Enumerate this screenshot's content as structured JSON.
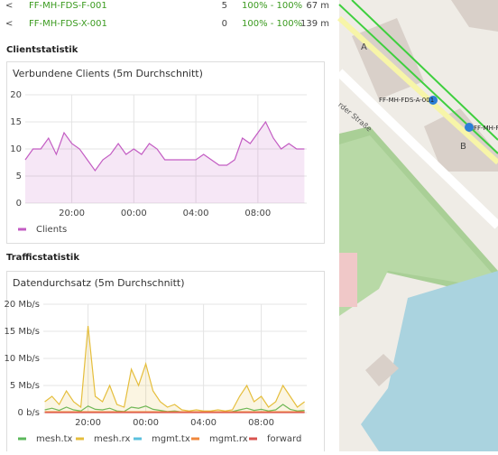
{
  "neighbors": [
    {
      "name": "FF-MH-FDS-F-001",
      "clients": "5",
      "quality": "100% - 100%",
      "distance": "67 m"
    },
    {
      "name": "FF-MH-FDS-X-001",
      "clients": "0",
      "quality": "100% - 100%",
      "distance": "139 m"
    }
  ],
  "headings": {
    "clients": "Clientstatistik",
    "traffic": "Trafficstatistik"
  },
  "chart_data": [
    {
      "type": "line",
      "title": "Verbundene Clients (5m Durchschnitt)",
      "x": [
        17,
        17.5,
        18,
        18.5,
        19,
        19.5,
        20,
        20.5,
        21,
        21.5,
        22,
        22.5,
        23,
        23.5,
        24,
        24.5,
        25,
        25.5,
        26,
        26.5,
        27,
        27.5,
        28,
        28.5,
        29,
        29.5,
        30,
        30.5,
        31,
        31.5,
        32,
        32.5,
        33,
        33.5,
        34,
        34.5,
        35
      ],
      "series": [
        {
          "name": "Clients",
          "color": "#c35cc3",
          "area": true,
          "values": [
            8,
            10,
            10,
            12,
            9,
            13,
            11,
            10,
            8,
            6,
            8,
            9,
            11,
            9,
            10,
            9,
            11,
            10,
            8,
            8,
            8,
            8,
            8,
            9,
            8,
            7,
            7,
            8,
            12,
            11,
            13,
            15,
            12,
            10,
            11,
            10,
            10
          ]
        }
      ],
      "xlim": [
        17,
        35.15
      ],
      "ylim": [
        0,
        20
      ],
      "xticks": [
        {
          "value": 20,
          "label": "20:00"
        },
        {
          "value": 24,
          "label": "00:00"
        },
        {
          "value": 28,
          "label": "04:00"
        },
        {
          "value": 32,
          "label": "08:00"
        }
      ],
      "yticks": [
        0,
        5,
        10,
        15,
        20
      ],
      "grid": true
    },
    {
      "type": "line",
      "title": "Datendurchsatz (5m Durchschnitt)",
      "x": [
        17,
        17.5,
        18,
        18.5,
        19,
        19.5,
        20,
        20.5,
        21,
        21.5,
        22,
        22.5,
        23,
        23.5,
        24,
        24.5,
        25,
        25.5,
        26,
        26.5,
        27,
        27.5,
        28,
        28.5,
        29,
        29.5,
        30,
        30.5,
        31,
        31.5,
        32,
        32.5,
        33,
        33.5,
        34,
        34.5,
        35
      ],
      "series": [
        {
          "name": "mesh.tx",
          "color": "#5cb85c",
          "area": false,
          "values": [
            0.5,
            0.8,
            0.4,
            1,
            0.5,
            0.3,
            1.2,
            0.6,
            0.5,
            0.8,
            0.3,
            0.2,
            1,
            0.8,
            1.2,
            0.6,
            0.4,
            0.2,
            0.3,
            0.1,
            0.1,
            0.1,
            0.1,
            0.1,
            0.1,
            0.1,
            0.2,
            0.5,
            0.8,
            0.4,
            0.6,
            0.3,
            0.5,
            1.5,
            0.6,
            0.3,
            0.4
          ]
        },
        {
          "name": "mesh.rx",
          "color": "#e5be3c",
          "area": true,
          "values": [
            2,
            3,
            1.5,
            4,
            2,
            1,
            16,
            3,
            2,
            5,
            1.5,
            1,
            8,
            5,
            9,
            4,
            2,
            1,
            1.5,
            0.5,
            0.3,
            0.5,
            0.3,
            0.3,
            0.5,
            0.3,
            0.5,
            3,
            5,
            2,
            3,
            1,
            2,
            5,
            3,
            1,
            2
          ]
        },
        {
          "name": "mgmt.tx",
          "color": "#5bc0de",
          "area": false,
          "values": [
            0.1,
            0.1,
            0.1,
            0.1,
            0.1,
            0.1,
            0.1,
            0.1,
            0.1,
            0.1,
            0.1,
            0.1,
            0.1,
            0.1,
            0.1,
            0.1,
            0.1,
            0.1,
            0.1,
            0.1,
            0.1,
            0.1,
            0.1,
            0.1,
            0.1,
            0.1,
            0.1,
            0.1,
            0.1,
            0.1,
            0.1,
            0.1,
            0.1,
            0.1,
            0.1,
            0.1,
            0.1
          ]
        },
        {
          "name": "mgmt.rx",
          "color": "#f0883c",
          "area": false,
          "values": [
            0.15,
            0.15,
            0.15,
            0.15,
            0.15,
            0.15,
            0.15,
            0.15,
            0.15,
            0.15,
            0.15,
            0.15,
            0.15,
            0.15,
            0.15,
            0.15,
            0.15,
            0.15,
            0.15,
            0.15,
            0.15,
            0.15,
            0.15,
            0.15,
            0.15,
            0.15,
            0.15,
            0.15,
            0.15,
            0.15,
            0.15,
            0.15,
            0.15,
            0.15,
            0.15,
            0.15,
            0.15
          ]
        },
        {
          "name": "forward",
          "color": "#d9534f",
          "area": false,
          "values": [
            0,
            0,
            0,
            0,
            0,
            0,
            0,
            0,
            0,
            0,
            0,
            0,
            0,
            0,
            0,
            0,
            0,
            0,
            0,
            0,
            0,
            0,
            0,
            0,
            0,
            0,
            0,
            0,
            0,
            0,
            0,
            0,
            0,
            0,
            0,
            0,
            0
          ]
        }
      ],
      "xlim": [
        16.9,
        35.15
      ],
      "ylim": [
        0,
        20
      ],
      "xticks": [
        {
          "value": 20,
          "label": "20:00"
        },
        {
          "value": 24,
          "label": "00:00"
        },
        {
          "value": 28,
          "label": "04:00"
        },
        {
          "value": 32,
          "label": "08:00"
        }
      ],
      "yticks": [
        {
          "value": 0,
          "label": "0 b/s"
        },
        {
          "value": 5,
          "label": "5 Mb/s"
        },
        {
          "value": 10,
          "label": "10 Mb/s"
        },
        {
          "value": 15,
          "label": "15 Mb/s"
        },
        {
          "value": 20,
          "label": "20 Mb/s"
        }
      ],
      "grid": true
    }
  ],
  "map": {
    "labels": [
      "A",
      "B",
      "FF-MH-FDS-A-001",
      "FF-MH-F",
      "rder Straße"
    ]
  }
}
